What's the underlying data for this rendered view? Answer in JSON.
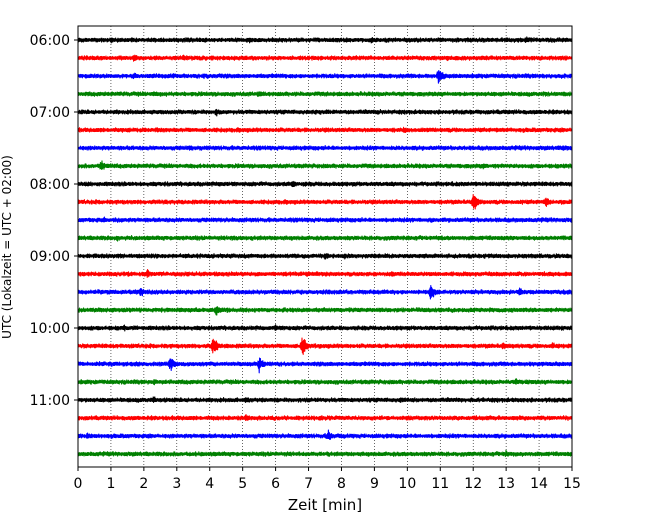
{
  "chart_data": {
    "type": "line",
    "chart_kind": "helicorder seismogram",
    "title": "",
    "xlabel": "Zeit  [min]",
    "ylabel": "UTC (Lokalzeit = UTC + 02:00)",
    "xlim": [
      0,
      15
    ],
    "x_ticks": [
      0,
      1,
      2,
      3,
      4,
      5,
      6,
      7,
      8,
      9,
      10,
      11,
      12,
      13,
      14,
      15
    ],
    "x_tick_labels": [
      "0",
      "1",
      "2",
      "3",
      "4",
      "5",
      "6",
      "7",
      "8",
      "9",
      "10",
      "11",
      "12",
      "13",
      "14",
      "15"
    ],
    "y_tick_labels": [
      "06:00",
      "07:00",
      "08:00",
      "09:00",
      "10:00",
      "11:00"
    ],
    "vertical_gridlines": "dotted, every minute",
    "trace_interval_minutes": 15,
    "colors": [
      "#000000",
      "#ff0000",
      "#0000ff",
      "#008000"
    ],
    "traces": [
      {
        "label": "06:00",
        "color": "#000000",
        "events": [
          {
            "minute": 1.0,
            "amplitude": 0.35
          },
          {
            "minute": 5.2,
            "amplitude": 0.3
          },
          {
            "minute": 8.9,
            "amplitude": 0.3
          },
          {
            "minute": 13.6,
            "amplitude": 0.35
          }
        ]
      },
      {
        "label": "",
        "color": "#ff0000",
        "events": [
          {
            "minute": 1.7,
            "amplitude": 0.4
          },
          {
            "minute": 3.2,
            "amplitude": 0.3
          },
          {
            "minute": 11.2,
            "amplitude": 0.3
          }
        ]
      },
      {
        "label": "",
        "color": "#0000ff",
        "events": [
          {
            "minute": 1.7,
            "amplitude": 0.35
          },
          {
            "minute": 3.8,
            "amplitude": 0.3
          },
          {
            "minute": 10.95,
            "amplitude": 0.9
          }
        ]
      },
      {
        "label": "",
        "color": "#008000",
        "events": [
          {
            "minute": 2.3,
            "amplitude": 0.35
          },
          {
            "minute": 5.5,
            "amplitude": 0.3
          }
        ]
      },
      {
        "label": "07:00",
        "color": "#000000",
        "events": [
          {
            "minute": 4.2,
            "amplitude": 0.4
          },
          {
            "minute": 9.1,
            "amplitude": 0.25
          }
        ]
      },
      {
        "label": "",
        "color": "#ff0000",
        "events": [
          {
            "minute": 2.4,
            "amplitude": 0.25
          },
          {
            "minute": 9.9,
            "amplitude": 0.3
          }
        ]
      },
      {
        "label": "",
        "color": "#0000ff",
        "events": [
          {
            "minute": 3.4,
            "amplitude": 0.3
          },
          {
            "minute": 14.7,
            "amplitude": 0.3
          }
        ]
      },
      {
        "label": "",
        "color": "#008000",
        "events": [
          {
            "minute": 0.7,
            "amplitude": 0.55
          },
          {
            "minute": 12.3,
            "amplitude": 0.3
          }
        ]
      },
      {
        "label": "08:00",
        "color": "#000000",
        "events": [
          {
            "minute": 4.3,
            "amplitude": 0.3
          },
          {
            "minute": 6.5,
            "amplitude": 0.4
          }
        ]
      },
      {
        "label": "",
        "color": "#ff0000",
        "events": [
          {
            "minute": 12.0,
            "amplitude": 0.95
          },
          {
            "minute": 14.2,
            "amplitude": 0.55
          }
        ]
      },
      {
        "label": "",
        "color": "#0000ff",
        "events": [
          {
            "minute": 0.8,
            "amplitude": 0.3
          },
          {
            "minute": 10.7,
            "amplitude": 0.3
          }
        ]
      },
      {
        "label": "",
        "color": "#008000",
        "events": [
          {
            "minute": 1.2,
            "amplitude": 0.3
          },
          {
            "minute": 4.7,
            "amplitude": 0.3
          }
        ]
      },
      {
        "label": "09:00",
        "color": "#000000",
        "events": [
          {
            "minute": 7.5,
            "amplitude": 0.4
          },
          {
            "minute": 8.1,
            "amplitude": 0.3
          }
        ]
      },
      {
        "label": "",
        "color": "#ff0000",
        "events": [
          {
            "minute": 2.1,
            "amplitude": 0.45
          },
          {
            "minute": 9.5,
            "amplitude": 0.25
          }
        ]
      },
      {
        "label": "",
        "color": "#0000ff",
        "events": [
          {
            "minute": 1.9,
            "amplitude": 0.55
          },
          {
            "minute": 10.7,
            "amplitude": 0.85
          },
          {
            "minute": 13.4,
            "amplitude": 0.5
          }
        ]
      },
      {
        "label": "",
        "color": "#008000",
        "events": [
          {
            "minute": 4.2,
            "amplitude": 0.6
          },
          {
            "minute": 12.5,
            "amplitude": 0.3
          }
        ]
      },
      {
        "label": "10:00",
        "color": "#000000",
        "events": [
          {
            "minute": 1.4,
            "amplitude": 0.3
          },
          {
            "minute": 6.0,
            "amplitude": 0.35
          }
        ]
      },
      {
        "label": "",
        "color": "#ff0000",
        "events": [
          {
            "minute": 4.1,
            "amplitude": 1.0
          },
          {
            "minute": 6.8,
            "amplitude": 1.1
          },
          {
            "minute": 12.9,
            "amplitude": 0.45
          },
          {
            "minute": 14.4,
            "amplitude": 0.35
          }
        ]
      },
      {
        "label": "",
        "color": "#0000ff",
        "events": [
          {
            "minute": 2.8,
            "amplitude": 0.8
          },
          {
            "minute": 5.5,
            "amplitude": 0.8
          }
        ]
      },
      {
        "label": "",
        "color": "#008000",
        "events": [
          {
            "minute": 2.3,
            "amplitude": 0.35
          },
          {
            "minute": 13.3,
            "amplitude": 0.35
          }
        ]
      },
      {
        "label": "11:00",
        "color": "#000000",
        "events": [
          {
            "minute": 2.3,
            "amplitude": 0.35
          },
          {
            "minute": 5.1,
            "amplitude": 0.35
          },
          {
            "minute": 9.8,
            "amplitude": 0.3
          }
        ]
      },
      {
        "label": "",
        "color": "#ff0000",
        "events": [
          {
            "minute": 5.1,
            "amplitude": 0.4
          },
          {
            "minute": 4.1,
            "amplitude": 0.25
          }
        ]
      },
      {
        "label": "",
        "color": "#0000ff",
        "events": [
          {
            "minute": 0.3,
            "amplitude": 0.35
          },
          {
            "minute": 7.6,
            "amplitude": 0.55
          }
        ]
      },
      {
        "label": "",
        "color": "#008000",
        "events": [
          {
            "minute": 13.0,
            "amplitude": 0.35
          }
        ]
      }
    ]
  }
}
